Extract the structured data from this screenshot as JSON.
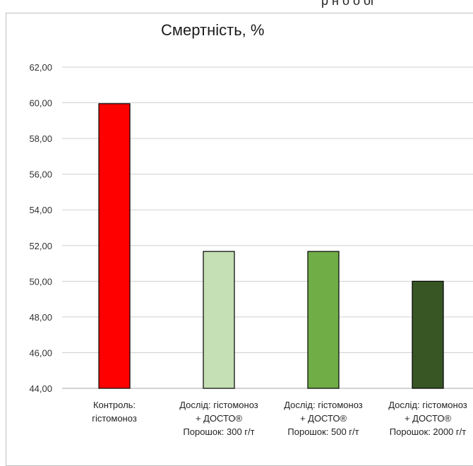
{
  "header_fragment": "р н    о    о  оі",
  "chart_data": {
    "type": "bar",
    "title": "Смертність, %",
    "xlabel": "",
    "ylabel": "",
    "ylim": [
      44,
      62
    ],
    "yticks": [
      "44,00",
      "46,00",
      "48,00",
      "50,00",
      "52,00",
      "54,00",
      "56,00",
      "58,00",
      "60,00",
      "62,00"
    ],
    "grid": true,
    "categories": [
      [
        "Контроль:",
        "гістомоноз"
      ],
      [
        "Дослід: гістомоноз",
        "+ ДОСТО®",
        "Порошок: 300 г/т"
      ],
      [
        "Дослід: гістомоноз",
        "+ ДОСТО®",
        "Порошок: 500 г/т"
      ],
      [
        "Дослід: гістомоноз",
        "+ ДОСТО®",
        "Порошок: 2000 г/т"
      ]
    ],
    "values": [
      59.95,
      51.67,
      51.67,
      50.0
    ],
    "colors": [
      "#ff0000",
      "#c5e0b4",
      "#70ad47",
      "#375623"
    ]
  }
}
